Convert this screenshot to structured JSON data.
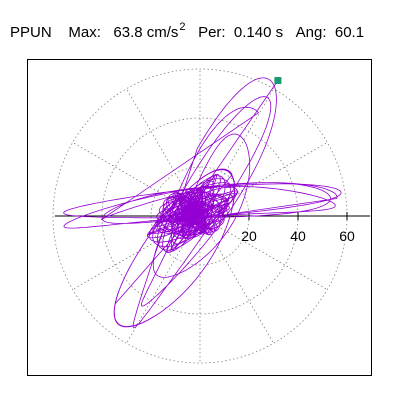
{
  "header": {
    "station": "PPUN",
    "max_label": "Max:",
    "max_value": "63.8 cm/s",
    "max_unit_exp": "2",
    "per_label": "Per:",
    "per_value": "0.140 s",
    "ang_label": "Ang:",
    "ang_value": "60.1"
  },
  "chart_data": {
    "type": "scatter",
    "subtype": "polar particle-motion (hodogram)",
    "radial_ticks": [
      20,
      40,
      60
    ],
    "rings": [
      20,
      40,
      60
    ],
    "spokes_deg": [
      0,
      30,
      60,
      90,
      120,
      150,
      180,
      210,
      240,
      270,
      300,
      330
    ],
    "grid": "dotted",
    "peak_point": {
      "x": 31.8,
      "y": 55.3
    },
    "max_amplitude": 63.8,
    "azimuth_deg": 60.1,
    "period_s": 0.14,
    "colors": {
      "trace": "#9400d3",
      "peak_marker": "#1a9a73",
      "grid": "#808080",
      "axes": "#000000"
    }
  }
}
